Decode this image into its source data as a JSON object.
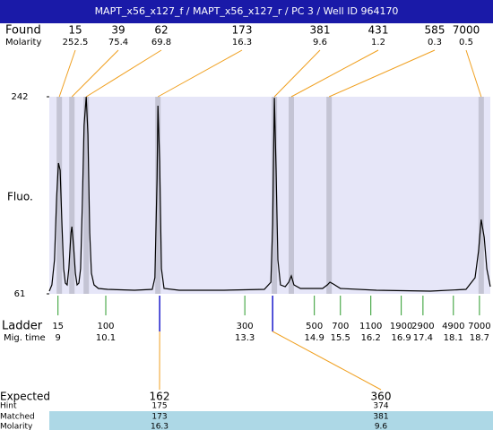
{
  "header": {
    "title": "MAPT_x56_x127_f / MAPT_x56_x127_r / PC 3 / Well ID 964170"
  },
  "found": {
    "label": "Found",
    "molarity_label": "Molarity",
    "peaks": [
      {
        "size": 15,
        "molarity": 252.5,
        "time": 9.03
      },
      {
        "size": 39,
        "molarity": 75.4,
        "time": 9.32
      },
      {
        "size": 62,
        "molarity": 69.8,
        "time": 9.65
      },
      {
        "size": 173,
        "molarity": 16.3,
        "time": 11.3
      },
      {
        "size": 381,
        "molarity": 9.6,
        "time": 13.98
      },
      {
        "size": 431,
        "molarity": 1.2,
        "time": 14.37
      },
      {
        "size": 585,
        "molarity": 0.3,
        "time": 15.24
      },
      {
        "size": 7000,
        "molarity": 0.5,
        "time": 18.74
      }
    ]
  },
  "chart_data": {
    "type": "line",
    "y_label": "Fluo.",
    "color": "#000000",
    "background": "#e6e6f8",
    "xlim": [
      8.8,
      18.95
    ],
    "ylim": [
      61,
      242
    ],
    "yticks": [
      61,
      242
    ],
    "x": [
      8.8,
      8.86,
      8.92,
      8.97,
      9.01,
      9.05,
      9.09,
      9.13,
      9.17,
      9.21,
      9.25,
      9.3,
      9.32,
      9.36,
      9.4,
      9.44,
      9.48,
      9.52,
      9.56,
      9.6,
      9.65,
      9.69,
      9.73,
      9.77,
      9.83,
      9.93,
      10.14,
      10.76,
      11.17,
      11.23,
      11.28,
      11.3,
      11.34,
      11.38,
      11.44,
      11.79,
      12.82,
      13.75,
      13.9,
      13.94,
      13.98,
      14.02,
      14.06,
      14.12,
      14.23,
      14.31,
      14.37,
      14.43,
      14.58,
      15.09,
      15.2,
      15.26,
      15.34,
      15.5,
      16.33,
      17.57,
      18.39,
      18.6,
      18.68,
      18.74,
      18.81,
      18.87,
      18.95
    ],
    "values": [
      63.5,
      69.2,
      92.3,
      149.9,
      181.1,
      174.5,
      125.1,
      84,
      70.9,
      69.2,
      84,
      117,
      122.7,
      104.6,
      79.9,
      69.2,
      70.9,
      84,
      141.6,
      215.7,
      242,
      207.4,
      117,
      79.9,
      69.2,
      65.9,
      65.1,
      64.3,
      65.1,
      75.8,
      166.3,
      233.8,
      182.8,
      84,
      65.9,
      64.3,
      64.3,
      65.1,
      71.7,
      125.2,
      241,
      174.5,
      92.3,
      69.2,
      67.6,
      71.7,
      77.5,
      69.2,
      65.9,
      65.9,
      69.2,
      71.7,
      70,
      65.9,
      64.3,
      63.5,
      65.1,
      75.8,
      100.5,
      129.3,
      112.8,
      84,
      67.6
    ]
  },
  "ladder": {
    "label": "Ladder",
    "time_label": "Mig. time",
    "sizes": [
      15,
      100,
      300,
      500,
      700,
      1100,
      1900,
      2900,
      4900,
      7000
    ],
    "times": [
      9,
      10.1,
      13.3,
      14.9,
      15.5,
      16.2,
      16.9,
      17.4,
      18.1,
      18.7
    ]
  },
  "expected": {
    "labels": [
      "Expected",
      "Hint",
      "Matched",
      "Molarity"
    ],
    "columns": [
      {
        "expected": 162,
        "hint": 175,
        "matched": 173,
        "molarity": 16.3,
        "time": 11.34
      },
      {
        "expected": 360,
        "hint": 374,
        "matched": 381,
        "molarity": 9.6,
        "time": 13.94
      }
    ]
  }
}
